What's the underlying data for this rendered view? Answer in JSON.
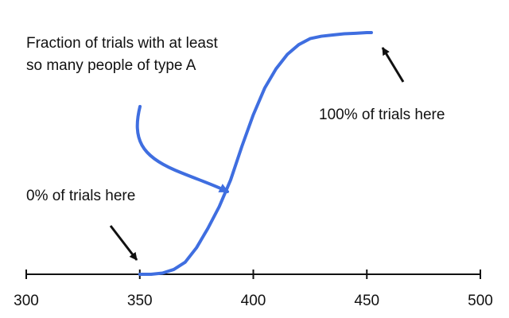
{
  "chart_data": {
    "type": "line",
    "title": "",
    "xlabel": "",
    "ylabel": "",
    "xlim": [
      300,
      500
    ],
    "ylim": [
      0,
      1
    ],
    "xticks": [
      300,
      350,
      400,
      450,
      500
    ],
    "xtick_labels": [
      "300",
      "350",
      "400",
      "450",
      "500"
    ],
    "grid": false,
    "legend": "none",
    "series": [
      {
        "color": "#3f6ee0",
        "x": [
          350,
          355,
          360,
          365,
          370,
          375,
          380,
          385,
          390,
          395,
          400,
          405,
          410,
          415,
          420,
          425,
          430,
          435,
          440,
          445,
          450,
          452
        ],
        "y": [
          0.0,
          0.0,
          0.005,
          0.02,
          0.05,
          0.11,
          0.19,
          0.28,
          0.39,
          0.53,
          0.66,
          0.77,
          0.85,
          0.91,
          0.95,
          0.975,
          0.985,
          0.99,
          0.995,
          0.997,
          1.0,
          1.0
        ]
      }
    ],
    "annotations": [
      {
        "id": "fraction",
        "lines": [
          "Fraction of trials with at least",
          "so many people of type A"
        ]
      },
      {
        "id": "hundred",
        "lines": [
          "100% of trials here"
        ]
      },
      {
        "id": "zero",
        "lines": [
          "0% of trials here"
        ]
      }
    ]
  }
}
